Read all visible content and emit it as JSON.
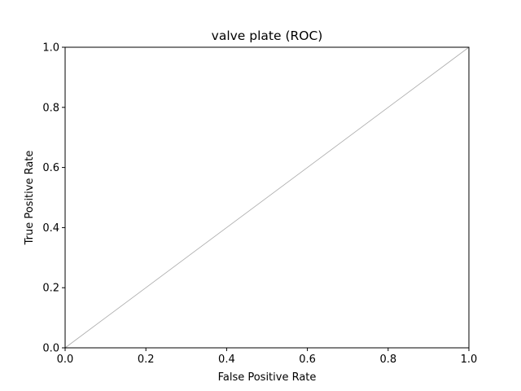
{
  "chart_data": {
    "type": "line",
    "title": "valve plate (ROC)",
    "xlabel": "False Positive Rate",
    "ylabel": "True Positive Rate",
    "xlim": [
      0.0,
      1.0
    ],
    "ylim": [
      0.0,
      1.0
    ],
    "xticks": [
      "0.0",
      "0.2",
      "0.4",
      "0.6",
      "0.8",
      "1.0"
    ],
    "yticks": [
      "0.0",
      "0.2",
      "0.4",
      "0.6",
      "0.8",
      "1.0"
    ],
    "grid": false,
    "series": [
      {
        "x": [
          0.0,
          1.0
        ],
        "y": [
          0.0,
          1.0
        ],
        "color": "#aaaaaa"
      }
    ]
  }
}
